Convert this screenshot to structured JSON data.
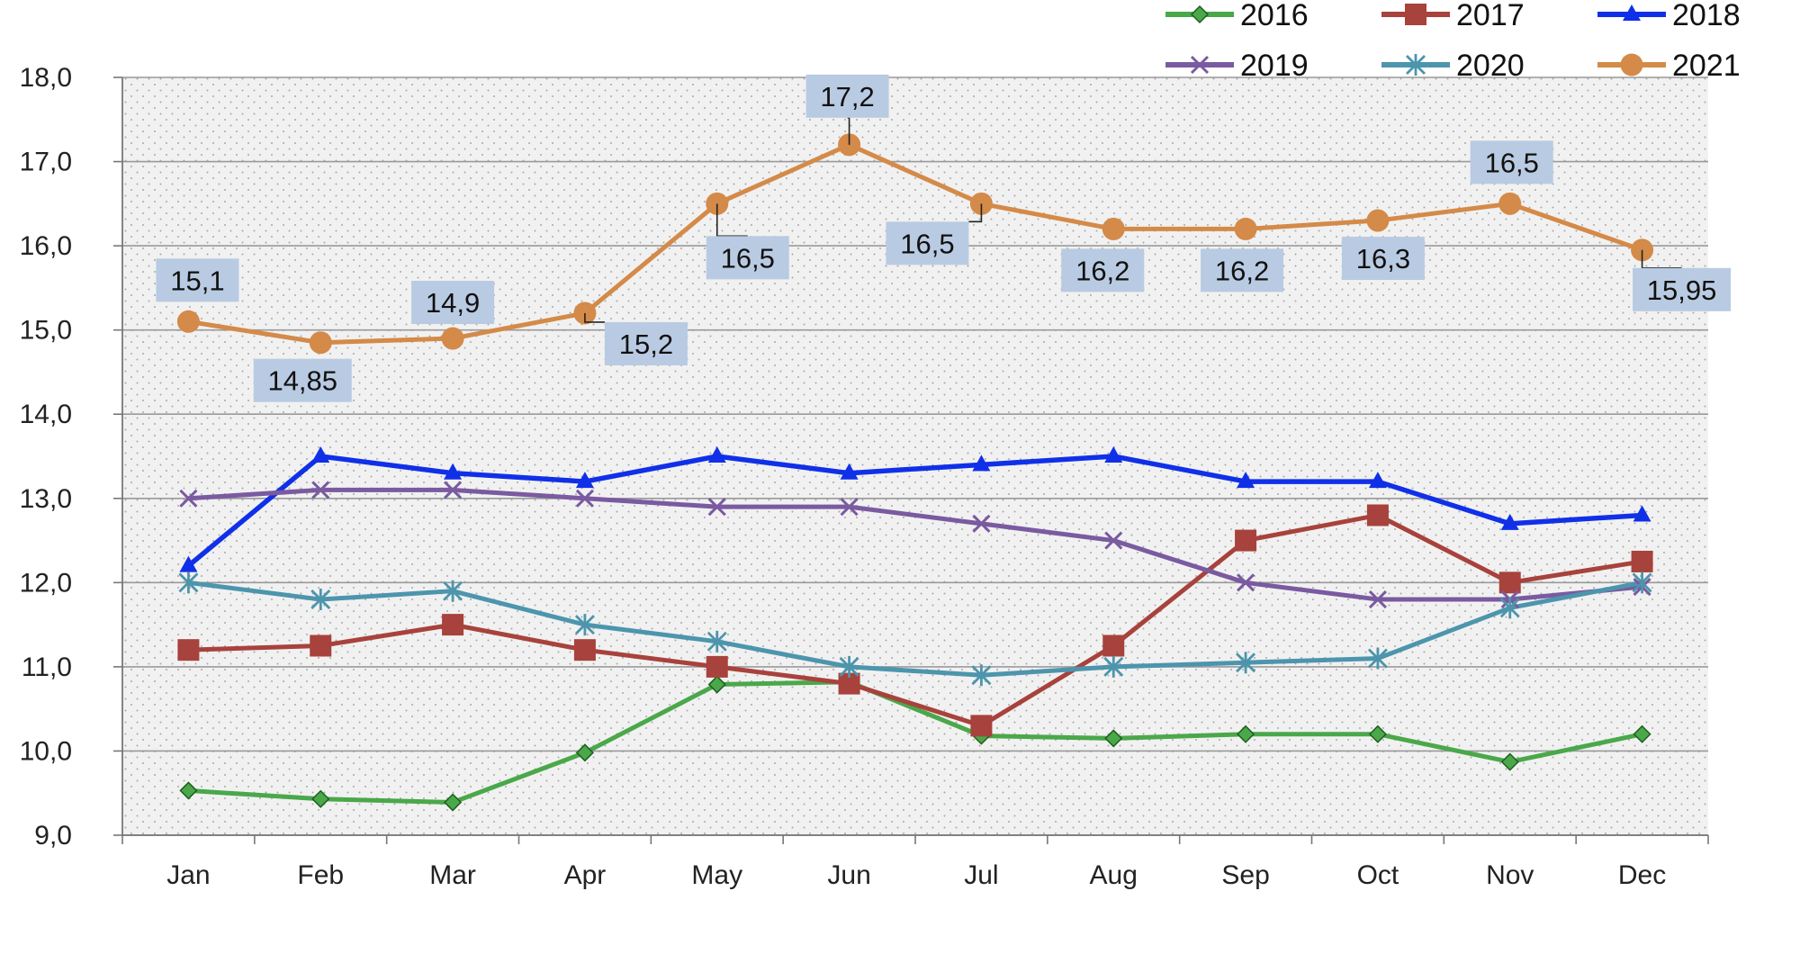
{
  "chart_data": {
    "type": "line",
    "categories": [
      "Jan",
      "Feb",
      "Mar",
      "Apr",
      "May",
      "Jun",
      "Jul",
      "Aug",
      "Sep",
      "Oct",
      "Nov",
      "Dec"
    ],
    "ylim": [
      9.0,
      18.0
    ],
    "yticks": [
      9.0,
      10.0,
      11.0,
      12.0,
      13.0,
      14.0,
      15.0,
      16.0,
      17.0,
      18.0
    ],
    "ytick_labels": [
      "9,0",
      "10,0",
      "11,0",
      "12,0",
      "13,0",
      "14,0",
      "15,0",
      "16,0",
      "17,0",
      "18,0"
    ],
    "grid": true,
    "legend": "top-right",
    "title": "",
    "xlabel": "",
    "ylabel": "",
    "series": [
      {
        "name": "2016",
        "color": "#4aa84a",
        "marker": "diamond",
        "values": [
          9.53,
          9.43,
          9.39,
          9.98,
          10.79,
          10.82,
          10.18,
          10.15,
          10.2,
          10.2,
          9.87,
          10.2
        ]
      },
      {
        "name": "2017",
        "color": "#a8423c",
        "marker": "square",
        "values": [
          11.2,
          11.25,
          11.5,
          11.2,
          11.0,
          10.8,
          10.3,
          11.25,
          12.5,
          12.8,
          12.0,
          12.25
        ]
      },
      {
        "name": "2018",
        "color": "#1030e8",
        "marker": "triangle",
        "values": [
          12.2,
          13.5,
          13.3,
          13.2,
          13.5,
          13.3,
          13.4,
          13.5,
          13.2,
          13.2,
          12.7,
          12.8
        ]
      },
      {
        "name": "2019",
        "color": "#7a5aa0",
        "marker": "x",
        "values": [
          13.0,
          13.1,
          13.1,
          13.0,
          12.9,
          12.9,
          12.7,
          12.5,
          12.0,
          11.8,
          11.8,
          11.95
        ]
      },
      {
        "name": "2020",
        "color": "#4c95ad",
        "marker": "asterisk",
        "values": [
          12.0,
          11.8,
          11.9,
          11.5,
          11.3,
          11.0,
          10.9,
          11.0,
          11.05,
          11.1,
          11.7,
          12.0
        ]
      },
      {
        "name": "2021",
        "color": "#d48a48",
        "marker": "circle",
        "values": [
          15.1,
          14.85,
          14.9,
          15.2,
          16.5,
          17.2,
          16.5,
          16.2,
          16.2,
          16.3,
          16.5,
          15.95
        ],
        "data_labels": [
          "15,1",
          "14,85",
          "14,9",
          "15,2",
          "16,5",
          "17,2",
          "16,5",
          "16,2",
          "16,2",
          "16,3",
          "16,5",
          "15,95"
        ]
      }
    ]
  }
}
